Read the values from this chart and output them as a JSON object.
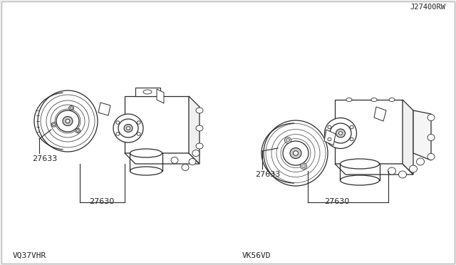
{
  "bg_color": "#ffffff",
  "line_color": "#2a2a2a",
  "text_color": "#222222",
  "left_label": "VQ37VHR",
  "right_label": "VK56VD",
  "part_27630": "27630",
  "part_27633": "27633",
  "footer": "J27400RW",
  "fig_bg": "#eeeeee"
}
